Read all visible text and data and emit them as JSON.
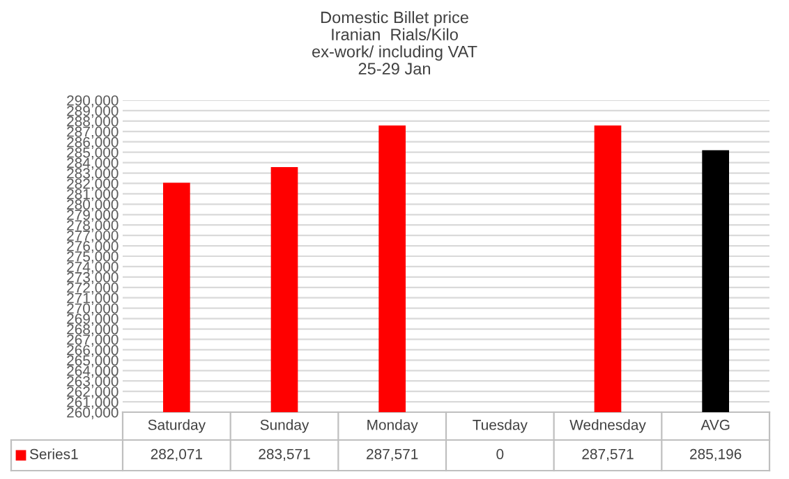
{
  "chart_data": {
    "type": "bar",
    "title": "Domestic Billet price\nIranian  Rials/Kilo\nex-work/ including VAT\n25-29 Jan",
    "categories": [
      "Saturday",
      "Sunday",
      "Monday",
      "Tuesday",
      "Wednesday",
      "AVG"
    ],
    "series": [
      {
        "name": "Series1",
        "color": "#ff0000",
        "colors": [
          "#ff0000",
          "#ff0000",
          "#ff0000",
          "#ff0000",
          "#ff0000",
          "#000000"
        ],
        "values": [
          282071,
          283571,
          287571,
          null,
          287571,
          285196
        ],
        "value_labels": [
          "282,071",
          "283,571",
          "287,571",
          "0",
          "287,571",
          "285,196"
        ]
      }
    ],
    "ylim": [
      260000,
      290000
    ],
    "yticks": [
      {
        "value": 260000,
        "label": "260,000"
      },
      {
        "value": 261000,
        "label": "261,000"
      },
      {
        "value": 262000,
        "label": "262,000"
      },
      {
        "value": 263000,
        "label": "263,000"
      },
      {
        "value": 264000,
        "label": "264,000"
      },
      {
        "value": 265000,
        "label": "265,000"
      },
      {
        "value": 266000,
        "label": "266,000"
      },
      {
        "value": 267000,
        "label": "267,000"
      },
      {
        "value": 268000,
        "label": "268,000"
      },
      {
        "value": 269000,
        "label": "269,000"
      },
      {
        "value": 270000,
        "label": "270,000"
      },
      {
        "value": 271000,
        "label": "271,000"
      },
      {
        "value": 272000,
        "label": "272,000"
      },
      {
        "value": 273000,
        "label": "273,000"
      },
      {
        "value": 274000,
        "label": "274,000"
      },
      {
        "value": 275000,
        "label": "275,000"
      },
      {
        "value": 276000,
        "label": "276,000"
      },
      {
        "value": 277000,
        "label": "277,000"
      },
      {
        "value": 278000,
        "label": "278,000"
      },
      {
        "value": 279000,
        "label": "279,000"
      },
      {
        "value": 280000,
        "label": "280,000"
      },
      {
        "value": 281000,
        "label": "281,000"
      },
      {
        "value": 282000,
        "label": "282,000"
      },
      {
        "value": 283000,
        "label": "283,000"
      },
      {
        "value": 284000,
        "label": "284,000"
      },
      {
        "value": 285000,
        "label": "285,000"
      },
      {
        "value": 286000,
        "label": "286,000"
      },
      {
        "value": 287000,
        "label": "287,000"
      },
      {
        "value": 288000,
        "label": "288,000"
      },
      {
        "value": 289000,
        "label": "289,000"
      },
      {
        "value": 290000,
        "label": "290,000"
      }
    ],
    "grid": "y"
  }
}
